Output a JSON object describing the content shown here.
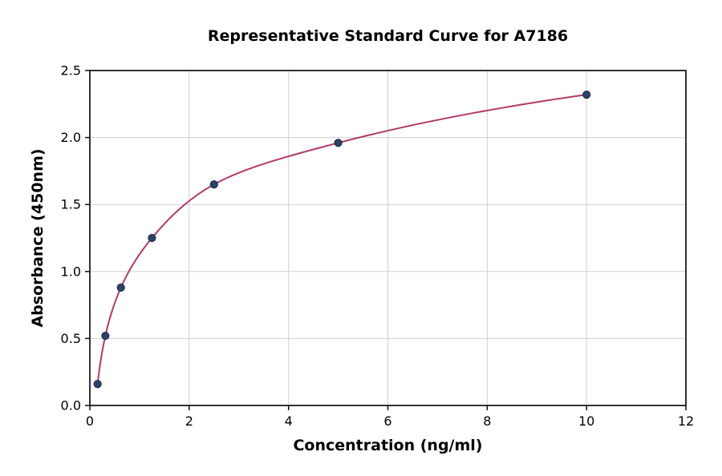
{
  "page": {
    "background_color": "#ffffff"
  },
  "chart_data": {
    "type": "scatter",
    "title": "Representative Standard Curve for A7186",
    "xlabel": "Concentration (ng/ml)",
    "ylabel": "Absorbance (450nm)",
    "xlim": [
      0,
      12
    ],
    "ylim": [
      0.0,
      2.5
    ],
    "xticks": {
      "values": [
        0,
        2,
        4,
        6,
        8,
        10,
        12
      ],
      "labels": [
        "0",
        "2",
        "4",
        "6",
        "8",
        "10",
        "12"
      ]
    },
    "yticks": {
      "values": [
        0.0,
        0.5,
        1.0,
        1.5,
        2.0,
        2.5
      ],
      "labels": [
        "0.0",
        "0.5",
        "1.0",
        "1.5",
        "2.0",
        "2.5"
      ]
    },
    "grid": true,
    "grid_color": "#d0d0d0",
    "axis_color": "#000000",
    "legend": "none",
    "points": {
      "name": "standards",
      "marker": "circle",
      "color": "#2e4169",
      "edge_color": "#1c2a47",
      "x": [
        0.156,
        0.3125,
        0.625,
        1.25,
        2.5,
        5,
        10
      ],
      "y": [
        0.16,
        0.52,
        0.88,
        1.25,
        1.65,
        1.96,
        2.32
      ]
    },
    "fit_curve": {
      "name": "fitted-standard-curve",
      "color": "#b23a66",
      "style": "smooth-through-points-log-x"
    }
  }
}
